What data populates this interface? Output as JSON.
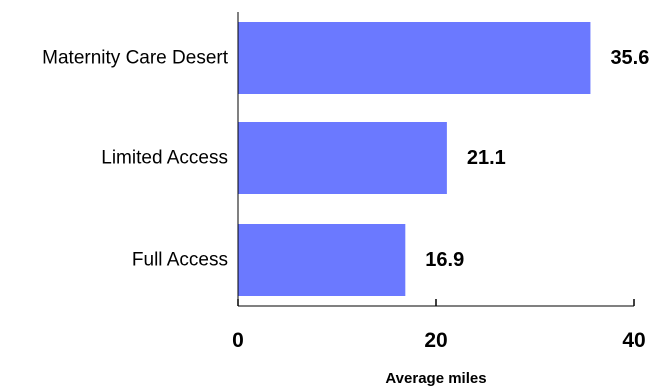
{
  "chart_data": {
    "type": "bar",
    "orientation": "horizontal",
    "categories": [
      "Maternity Care Desert",
      "Limited Access",
      "Full Access"
    ],
    "values": [
      35.6,
      21.1,
      16.9
    ],
    "value_labels": [
      "35.6",
      "21.1",
      "16.9"
    ],
    "xlabel": "Average miles",
    "xlim": [
      0,
      40
    ],
    "xticks": [
      0,
      20,
      40
    ],
    "xtick_labels": [
      "0",
      "20",
      "40"
    ],
    "grid": false,
    "legend": "none",
    "bar_color": "#6b79ff",
    "text_color": "#000000"
  }
}
